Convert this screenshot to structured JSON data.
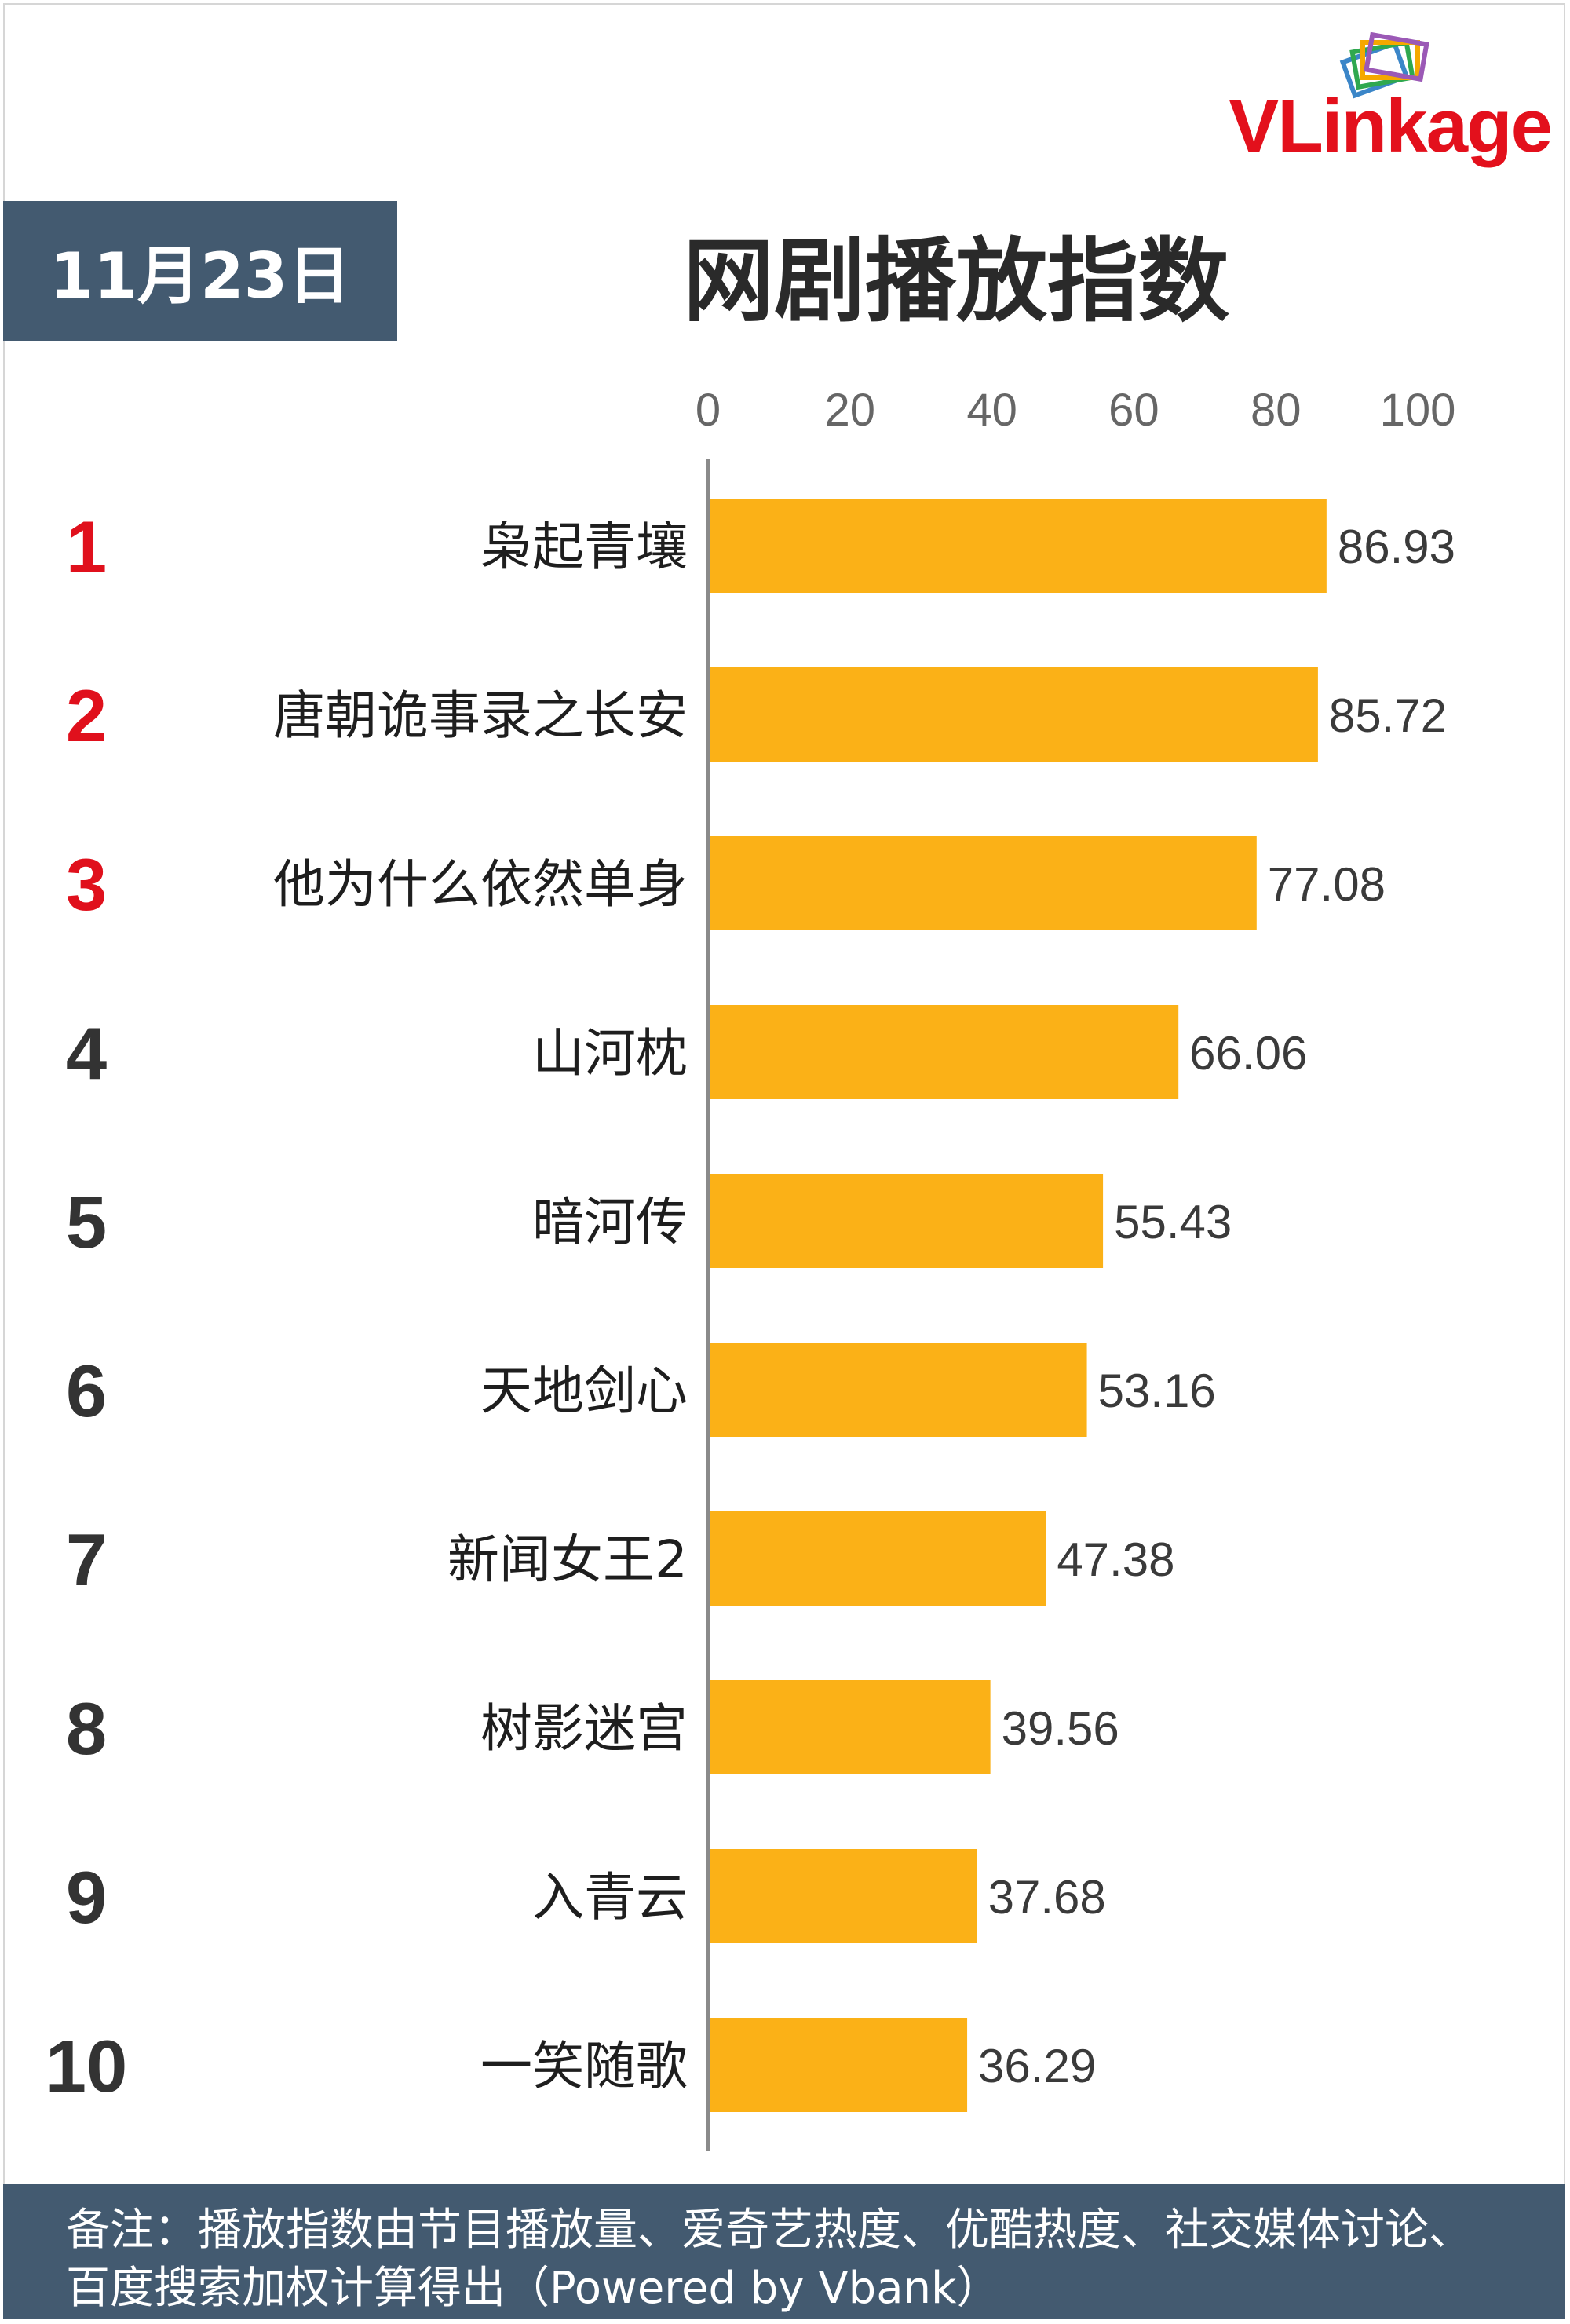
{
  "logo": {
    "v": "V",
    "rest": "Linkage",
    "colors": [
      "#e3101c",
      "#f5a800",
      "#2fa84f",
      "#3b86c8",
      "#9b59b6"
    ]
  },
  "header": {
    "date": "11月23日",
    "title": "网剧播放指数"
  },
  "colors": {
    "bar": "#fbb117",
    "rank_top": "#e0101c",
    "rank_other": "#333333",
    "axis": "#8a8a8a",
    "badge_bg": "#435a70"
  },
  "chart_data": {
    "type": "bar",
    "orientation": "horizontal",
    "title": "网剧播放指数",
    "xlim": [
      0,
      100
    ],
    "x_ticks": [
      "0",
      "20",
      "40",
      "60",
      "80",
      "100"
    ],
    "axis_position": "top",
    "grid": false,
    "ranks": [
      "1",
      "2",
      "3",
      "4",
      "5",
      "6",
      "7",
      "8",
      "9",
      "10"
    ],
    "categories": [
      "枭起青壤",
      "唐朝诡事录之长安",
      "他为什么依然单身",
      "山河枕",
      "暗河传",
      "天地剑心",
      "新闻女王2",
      "树影迷宫",
      "入青云",
      "一笑随歌"
    ],
    "values": [
      86.93,
      85.72,
      77.08,
      66.06,
      55.43,
      53.16,
      47.38,
      39.56,
      37.68,
      36.29
    ],
    "value_labels": [
      "86.93",
      "85.72",
      "77.08",
      "66.06",
      "55.43",
      "53.16",
      "47.38",
      "39.56",
      "37.68",
      "36.29"
    ]
  },
  "footer": {
    "note": "备注：播放指数由节目播放量、爱奇艺热度、优酷热度、社交媒体讨论、百度搜索加权计算得出（Powered by Vbank）"
  }
}
